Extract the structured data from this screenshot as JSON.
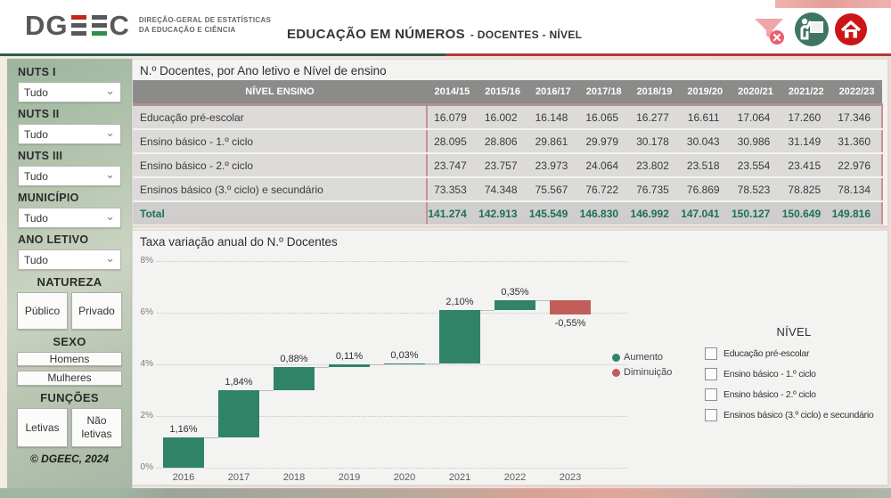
{
  "header": {
    "logo": {
      "left": "DG",
      "right": "C"
    },
    "tagline_line1": "DIREÇÃO-GERAL DE ESTATÍSTICAS",
    "tagline_line2": "DA EDUCAÇÃO E CIÊNCIA",
    "title_main": "EDUCAÇÃO EM NÚMEROS",
    "title_sub": "- DOCENTES - NÍVEL",
    "icons": [
      "clear-filter-icon",
      "teacher-board-icon",
      "home-icon"
    ]
  },
  "sidebar": {
    "filters": [
      {
        "id": "nuts-i",
        "label": "NUTS I",
        "value": "Tudo"
      },
      {
        "id": "nuts-ii",
        "label": "NUTS II",
        "value": "Tudo"
      },
      {
        "id": "nuts-iii",
        "label": "NUTS III",
        "value": "Tudo"
      },
      {
        "id": "municipio",
        "label": "MUNICÍPIO",
        "value": "Tudo"
      },
      {
        "id": "ano-letivo",
        "label": "ANO LETIVO",
        "value": "Tudo"
      }
    ],
    "natureza": {
      "label": "NATUREZA",
      "buttons": [
        "Público",
        "Privado"
      ]
    },
    "sexo": {
      "label": "SEXO",
      "buttons": [
        "Homens",
        "Mulheres"
      ]
    },
    "funcoes": {
      "label": "FUNÇÕES",
      "buttons": [
        "Letivas",
        "Não letivas"
      ]
    },
    "copyright": "© DGEEC, 2024"
  },
  "table": {
    "title": "N.º Docentes, por Ano letivo e Nível de ensino",
    "header_label": "NÍVEL ENSINO",
    "years": [
      "2014/15",
      "2015/16",
      "2016/17",
      "2017/18",
      "2018/19",
      "2019/20",
      "2020/21",
      "2021/22",
      "2022/23"
    ],
    "rows": [
      {
        "label": "Educação pré-escolar",
        "values": [
          "16.079",
          "16.002",
          "16.148",
          "16.065",
          "16.277",
          "16.611",
          "17.064",
          "17.260",
          "17.346"
        ]
      },
      {
        "label": "Ensino básico - 1.º ciclo",
        "values": [
          "28.095",
          "28.806",
          "29.861",
          "29.979",
          "30.178",
          "30.043",
          "30.986",
          "31.149",
          "31.360"
        ]
      },
      {
        "label": "Ensino básico - 2.º ciclo",
        "values": [
          "23.747",
          "23.757",
          "23.973",
          "24.064",
          "23.802",
          "23.518",
          "23.554",
          "23.415",
          "22.976"
        ]
      },
      {
        "label": "Ensinos básico (3.º ciclo) e secundário",
        "values": [
          "73.353",
          "74.348",
          "75.567",
          "76.722",
          "76.735",
          "76.869",
          "78.523",
          "78.825",
          "78.134"
        ]
      }
    ],
    "total": {
      "label": "Total",
      "values": [
        "141.274",
        "142.913",
        "145.549",
        "146.830",
        "146.992",
        "147.041",
        "150.127",
        "150.649",
        "149.816"
      ]
    }
  },
  "chart_data": {
    "type": "waterfall",
    "title": "Taxa variação anual do N.º Docentes",
    "categories": [
      "2016",
      "2017",
      "2018",
      "2019",
      "2020",
      "2021",
      "2022",
      "2023"
    ],
    "values": [
      1.16,
      1.84,
      0.88,
      0.11,
      0.03,
      2.1,
      0.35,
      -0.55
    ],
    "labels": [
      "1,16%",
      "1,84%",
      "0,88%",
      "0,11%",
      "0,03%",
      "2,10%",
      "0,35%",
      "-0,55%"
    ],
    "ylim": [
      0,
      8
    ],
    "yticks": [
      "0%",
      "2%",
      "4%",
      "6%",
      "8%"
    ],
    "grid": "dotted",
    "legend_position": "right",
    "legend": [
      {
        "label": "Aumento",
        "color": "#2f8467"
      },
      {
        "label": "Diminuição",
        "color": "#c25e5a"
      }
    ]
  },
  "nivel_panel": {
    "title": "NÍVEL",
    "options": [
      "Educação pré-escolar",
      "Ensino básico - 1.º ciclo",
      "Ensino básico - 2.º ciclo",
      "Ensinos básico (3.º ciclo) e secundário"
    ]
  },
  "colors": {
    "increase": "#2f8467",
    "decrease": "#c25e5a",
    "total_text": "#1d6f5b",
    "divider_green": "#2e5c4c",
    "divider_red": "#b23a31"
  }
}
